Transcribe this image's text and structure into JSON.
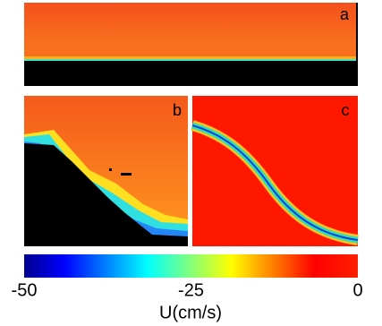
{
  "panels": [
    {
      "label": "a"
    },
    {
      "label": "b"
    },
    {
      "label": "c"
    }
  ],
  "colorbar": {
    "label": "U(cm/s)",
    "lim": [
      -50,
      0
    ],
    "ticks": [
      -50,
      -25,
      0
    ]
  }
}
